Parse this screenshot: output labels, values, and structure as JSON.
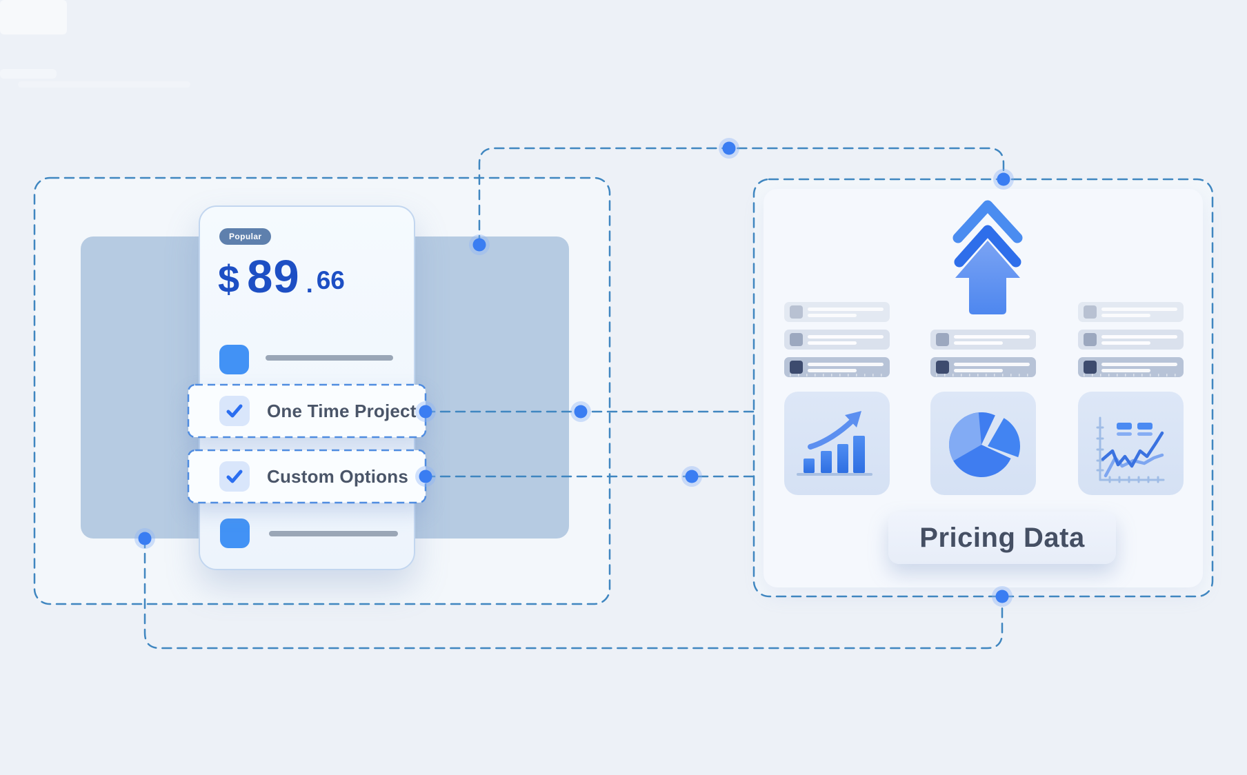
{
  "pricing_card": {
    "badge": "Popular",
    "price": {
      "currency": "$",
      "integer": "89",
      "separator": ".",
      "fraction": "66"
    },
    "options": [
      {
        "label": "One Time Project",
        "checked": true
      },
      {
        "label": "Custom Options",
        "checked": true
      }
    ]
  },
  "data_panel": {
    "title": "Pricing Data",
    "icons": [
      "double-up-arrow",
      "bar-chart",
      "pie-chart",
      "line-chart"
    ],
    "skeleton_columns": [
      {
        "rows": [
          "light",
          "medium",
          "dark"
        ]
      },
      {
        "rows": [
          "medium",
          "dark"
        ]
      },
      {
        "rows": [
          "light",
          "medium",
          "dark"
        ]
      }
    ]
  },
  "colors": {
    "bg": "#edf1f7",
    "dash": "#3f86c0",
    "rowDash": "#4f8ce0",
    "dot": "#3a7df2",
    "price": "#1d4fc4",
    "badgeBg": "#5e80ad",
    "badgeText": "#ffffff",
    "label": "#4a5568",
    "title": "#454f63",
    "backdrop": "#b6cbe2",
    "square": "#4292f5",
    "check": "#2b6ef0",
    "tile": "#d9e4f5",
    "skLight": "#e3e9f2",
    "skMed": "#dae1ed",
    "skDark": "#b7c3d7",
    "skDarkSq": "#3d4b6e"
  }
}
